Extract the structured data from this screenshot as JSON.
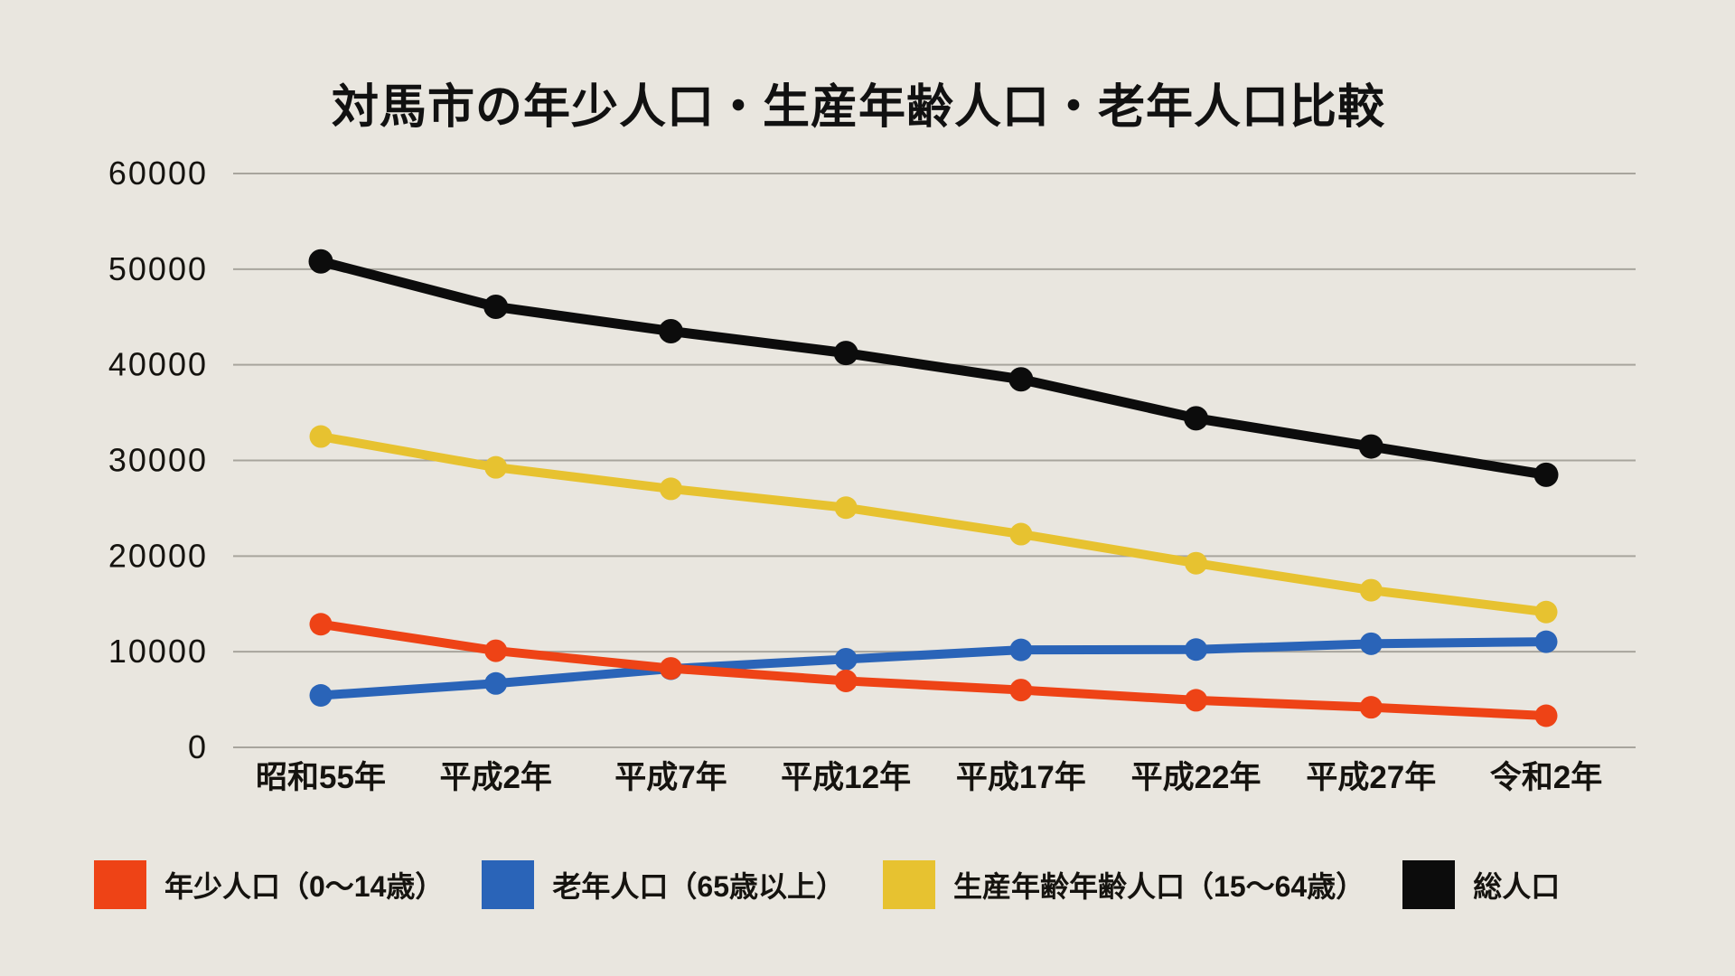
{
  "page": {
    "background": "#e9e6df",
    "grid_color": "#a8a59d",
    "text_color": "#15130f"
  },
  "chart_data": {
    "type": "line",
    "title": "対馬市の年少人口・生産年齢人口・老年人口比較",
    "categories": [
      "昭和55年",
      "平成2年",
      "平成7年",
      "平成12年",
      "平成17年",
      "平成22年",
      "平成27年",
      "令和2年"
    ],
    "series": [
      {
        "name": "年少人口（0〜14歳）",
        "color": "#ee4316",
        "values": [
          12875,
          10103,
          8258,
          6950,
          5994,
          4923,
          4189,
          3308
        ]
      },
      {
        "name": "老年人口（65歳以上）",
        "color": "#2a64b8",
        "values": [
          5433,
          6683,
          8222,
          9218,
          10193,
          10228,
          10835,
          11044
        ]
      },
      {
        "name": "生産年齢年齢人口（15〜64歳）",
        "color": "#e7c230",
        "values": [
          32502,
          29278,
          27033,
          25062,
          22294,
          19256,
          16433,
          14150
        ]
      },
      {
        "name": "総人口",
        "color": "#0c0c0c",
        "values": [
          50810,
          46064,
          43513,
          41230,
          38481,
          34407,
          31457,
          28502
        ]
      }
    ],
    "ylim": [
      0,
      60000
    ],
    "yticks": [
      0,
      10000,
      20000,
      30000,
      40000,
      50000,
      60000
    ],
    "ytick_labels": [
      "0",
      "10000",
      "20000",
      "30000",
      "40000",
      "50000",
      "60000"
    ],
    "grid": true,
    "legend_position": "bottom",
    "xlabel": "",
    "ylabel": ""
  }
}
